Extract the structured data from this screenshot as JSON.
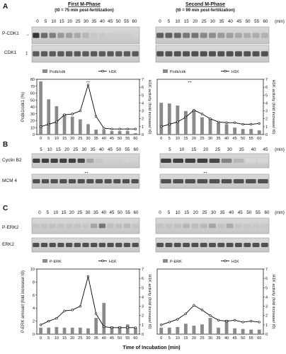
{
  "panels": {
    "a": {
      "letter": "A",
      "first_title": "First M-Phase",
      "first_sub": "(t0 = 75 min post-fertilization)",
      "second_title": "Second M-Phase",
      "second_sub": "(t0 = 99 min post-fertilization)",
      "time_ticks": [
        "0",
        "5",
        "10",
        "15",
        "20",
        "25",
        "30",
        "35",
        "40",
        "45",
        "50",
        "55",
        "60"
      ],
      "time_unit": "(min)",
      "blot_labels": [
        "P-CDK1",
        "CDK1"
      ]
    },
    "b": {
      "letter": "B",
      "time_ticks_left": [
        "5",
        "10",
        "15",
        "20",
        "25",
        "30",
        "35",
        "40",
        "45",
        "50",
        "55",
        "60"
      ],
      "time_ticks_right": [
        "5",
        "10",
        "15",
        "20",
        "25",
        "30",
        "35",
        "40",
        "45"
      ],
      "time_unit": "(min)",
      "blot_labels": [
        "Cyclin B2",
        "MCM 4"
      ]
    },
    "c": {
      "letter": "C",
      "time_ticks": [
        "0",
        "5",
        "10",
        "15",
        "20",
        "25",
        "30",
        "35",
        "40",
        "45",
        "50",
        "55",
        "60"
      ],
      "time_unit": "(min)",
      "blot_labels": [
        "P-ERK2",
        "ERK2"
      ],
      "xlabel": "Time of Incubation (min)"
    }
  },
  "chart_data": [
    {
      "type": "bar",
      "categories": [
        "0",
        "5",
        "10",
        "15",
        "20",
        "25",
        "30",
        "35",
        "40",
        "45",
        "50",
        "55",
        "60"
      ],
      "legend": [
        "Pcdk/cdk",
        "H1K"
      ],
      "ylabel": "Pcdk1/cdk1 (%)",
      "ylabel_right": "H1K activity (fold increase/ t0)",
      "ylim": [
        0,
        80
      ],
      "ylim_right": [
        0,
        7
      ],
      "yticks": [
        "0",
        "10",
        "20",
        "30",
        "40",
        "50",
        "60",
        "70",
        "80"
      ],
      "yticks_right": [
        "0",
        "1",
        "2",
        "3",
        "4",
        "5",
        "6",
        "7"
      ],
      "series": [
        {
          "name": "Pcdk/cdk",
          "type": "bar",
          "values": [
            77,
            51,
            41,
            30,
            26,
            22,
            15,
            7,
            7,
            5,
            5,
            5,
            2
          ]
        },
        {
          "name": "H1K",
          "type": "line",
          "values": [
            1.0,
            1.3,
            1.6,
            2.5,
            2.6,
            3.0,
            6.3,
            2.3,
            0.8,
            0.7,
            0.7,
            0.7,
            0.7
          ]
        }
      ]
    },
    {
      "type": "bar",
      "categories": [
        "0",
        "5",
        "10",
        "15",
        "20",
        "25",
        "30",
        "35",
        "40",
        "45",
        "50",
        "55",
        "60"
      ],
      "legend": [
        "Pcdk/cdk",
        "H1K"
      ],
      "ylabel_right": "H1K activity (fold increase/ t0)",
      "ylim": [
        0,
        80
      ],
      "ylim_right": [
        0,
        7
      ],
      "yticks_right": [
        "0",
        "1",
        "2",
        "3",
        "4",
        "5",
        "6",
        "7"
      ],
      "series": [
        {
          "name": "Pcdk/cdk",
          "type": "bar",
          "values": [
            46,
            45,
            42,
            34,
            35,
            25,
            23,
            17,
            15,
            10,
            8,
            8,
            6
          ]
        },
        {
          "name": "H1K",
          "type": "line",
          "values": [
            1.0,
            1.3,
            1.6,
            2.2,
            3.1,
            2.6,
            2.0,
            1.6,
            1.5,
            1.5,
            1.3,
            1.3,
            1.4
          ]
        }
      ]
    },
    {
      "type": "bar",
      "categories": [
        "0",
        "5",
        "10",
        "15",
        "20",
        "25",
        "30",
        "35",
        "40",
        "45",
        "50",
        "55",
        "60"
      ],
      "legend": [
        "P-ERK",
        "H1K"
      ],
      "ylabel": "P-ERK amount (fold increase/ t0)",
      "ylabel_right": "H1K activity (fold increase/ t0)",
      "ylim": [
        0,
        10
      ],
      "ylim_right": [
        0,
        7
      ],
      "yticks": [
        "0",
        "2",
        "4",
        "6",
        "8",
        "10"
      ],
      "yticks_right": [
        "0",
        "1",
        "2",
        "3",
        "4",
        "5",
        "6",
        "7"
      ],
      "series": [
        {
          "name": "P-ERK",
          "type": "bar",
          "values": [
            1.0,
            1.0,
            1.1,
            1.0,
            1.0,
            1.0,
            0.9,
            2.5,
            4.8,
            1.2,
            1.2,
            1.5,
            1.0
          ]
        },
        {
          "name": "H1K",
          "type": "line",
          "values": [
            1.0,
            1.4,
            1.7,
            2.5,
            2.6,
            3.0,
            6.2,
            2.2,
            0.8,
            0.7,
            0.7,
            0.7,
            0.7
          ]
        }
      ]
    },
    {
      "type": "bar",
      "categories": [
        "0",
        "5",
        "10",
        "15",
        "20",
        "25",
        "30",
        "35",
        "40",
        "45",
        "50",
        "55",
        "60"
      ],
      "legend": [
        "P-ERK",
        "H1K"
      ],
      "ylabel_right": "H1K activity (fold increase/ t0)",
      "ylim": [
        0,
        10
      ],
      "ylim_right": [
        0,
        7
      ],
      "yticks_right": [
        "0",
        "1",
        "2",
        "3",
        "4",
        "5",
        "6",
        "7"
      ],
      "series": [
        {
          "name": "P-ERK",
          "type": "bar",
          "values": [
            1.0,
            1.0,
            1.1,
            1.6,
            1.3,
            1.5,
            2.5,
            1.0,
            2.2,
            0.9,
            0.8,
            0.7,
            0.7
          ]
        },
        {
          "name": "H1K",
          "type": "line",
          "values": [
            1.0,
            1.3,
            1.6,
            2.2,
            3.1,
            2.6,
            2.0,
            1.5,
            1.4,
            1.5,
            1.3,
            1.4,
            1.3
          ]
        }
      ]
    }
  ]
}
